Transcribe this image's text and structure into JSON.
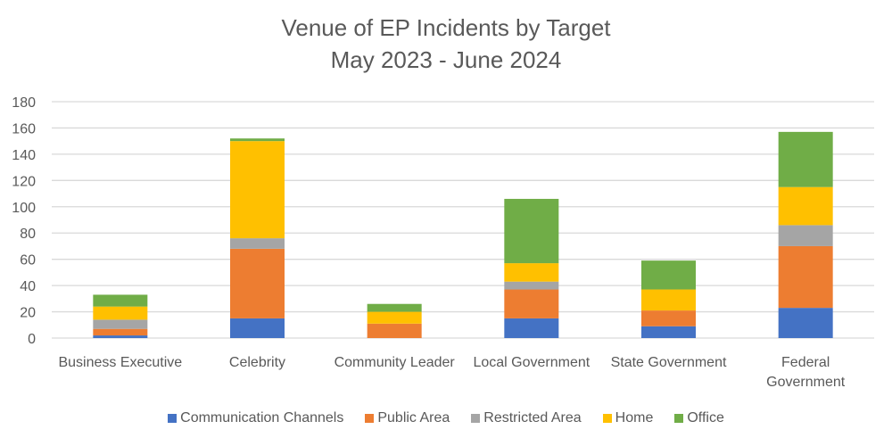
{
  "chart_data": {
    "type": "bar",
    "stacked": true,
    "title": "Venue of EP Incidents by Target",
    "subtitle": "May 2023 - June 2024",
    "xlabel": "",
    "ylabel": "",
    "ylim": [
      0,
      180
    ],
    "yticks": [
      0,
      20,
      40,
      60,
      80,
      100,
      120,
      140,
      160,
      180
    ],
    "grid": true,
    "legend_position": "bottom",
    "categories": [
      "Business Executive",
      "Celebrity",
      "Community Leader",
      "Local Government",
      "State Government",
      "Federal Government"
    ],
    "series": [
      {
        "name": "Communication Channels",
        "color": "#4472C4",
        "values": [
          2,
          15,
          0,
          15,
          9,
          23
        ]
      },
      {
        "name": "Public Area",
        "color": "#ED7D31",
        "values": [
          5,
          53,
          11,
          22,
          12,
          47
        ]
      },
      {
        "name": "Restricted Area",
        "color": "#A5A5A5",
        "values": [
          7,
          8,
          0,
          6,
          0,
          16
        ]
      },
      {
        "name": "Home",
        "color": "#FFC000",
        "values": [
          10,
          74,
          9,
          14,
          16,
          29
        ]
      },
      {
        "name": "Office",
        "color": "#70AD47",
        "values": [
          9,
          2,
          6,
          49,
          22,
          42
        ]
      }
    ]
  }
}
